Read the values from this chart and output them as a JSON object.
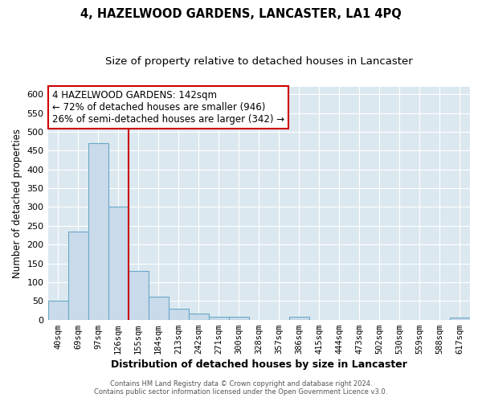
{
  "title": "4, HAZELWOOD GARDENS, LANCASTER, LA1 4PQ",
  "subtitle": "Size of property relative to detached houses in Lancaster",
  "xlabel": "Distribution of detached houses by size in Lancaster",
  "ylabel": "Number of detached properties",
  "bar_color": "#c9daea",
  "bar_edge_color": "#6aa8c8",
  "categories": [
    "40sqm",
    "69sqm",
    "97sqm",
    "126sqm",
    "155sqm",
    "184sqm",
    "213sqm",
    "242sqm",
    "271sqm",
    "300sqm",
    "328sqm",
    "357sqm",
    "386sqm",
    "415sqm",
    "444sqm",
    "473sqm",
    "502sqm",
    "530sqm",
    "559sqm",
    "588sqm",
    "617sqm"
  ],
  "values": [
    50,
    235,
    470,
    300,
    130,
    62,
    30,
    16,
    8,
    8,
    0,
    0,
    8,
    0,
    0,
    0,
    0,
    0,
    0,
    0,
    5
  ],
  "ylim": [
    0,
    620
  ],
  "yticks": [
    0,
    50,
    100,
    150,
    200,
    250,
    300,
    350,
    400,
    450,
    500,
    550,
    600
  ],
  "vline_x_idx": 3,
  "vline_color": "#cc0000",
  "annotation_text": "4 HAZELWOOD GARDENS: 142sqm\n← 72% of detached houses are smaller (946)\n26% of semi-detached houses are larger (342) →",
  "annotation_box_color": "#ffffff",
  "annotation_box_edge": "#cc0000",
  "footer_line1": "Contains HM Land Registry data © Crown copyright and database right 2024.",
  "footer_line2": "Contains public sector information licensed under the Open Government Licence v3.0.",
  "plot_bg_color": "#dce8f0",
  "figure_bg_color": "#ffffff",
  "grid_color": "#ffffff"
}
